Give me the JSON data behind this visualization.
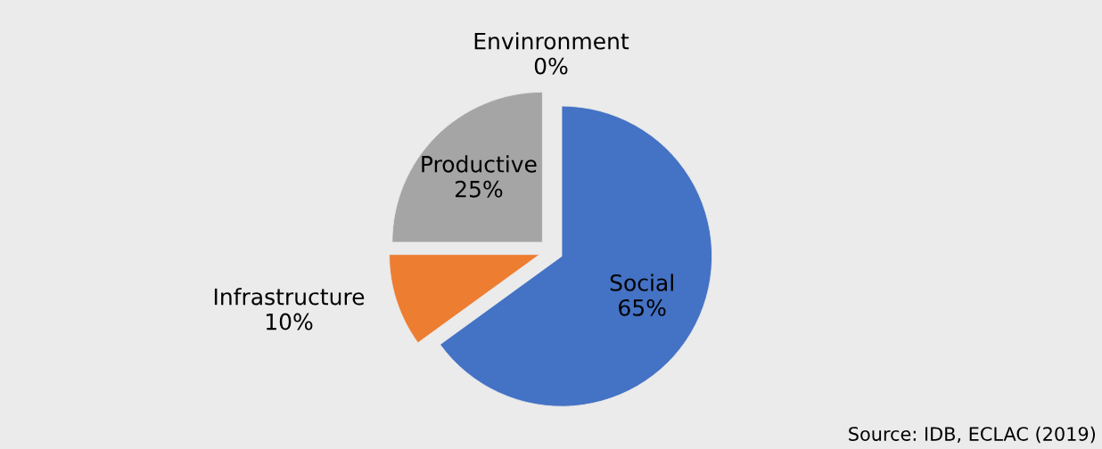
{
  "chart_data": {
    "type": "pie",
    "categories": [
      "Social",
      "Infrastructure",
      "Productive",
      "Envinronment"
    ],
    "values": [
      65,
      10,
      25,
      0
    ],
    "value_labels": [
      "65%",
      "10%",
      "25%",
      "0%"
    ],
    "colors": [
      "#4472c4",
      "#ed7d31",
      "#a5a5a5",
      "#ffc000"
    ],
    "annotations": [
      "Source: IDB, ECLAC (2019)"
    ]
  }
}
